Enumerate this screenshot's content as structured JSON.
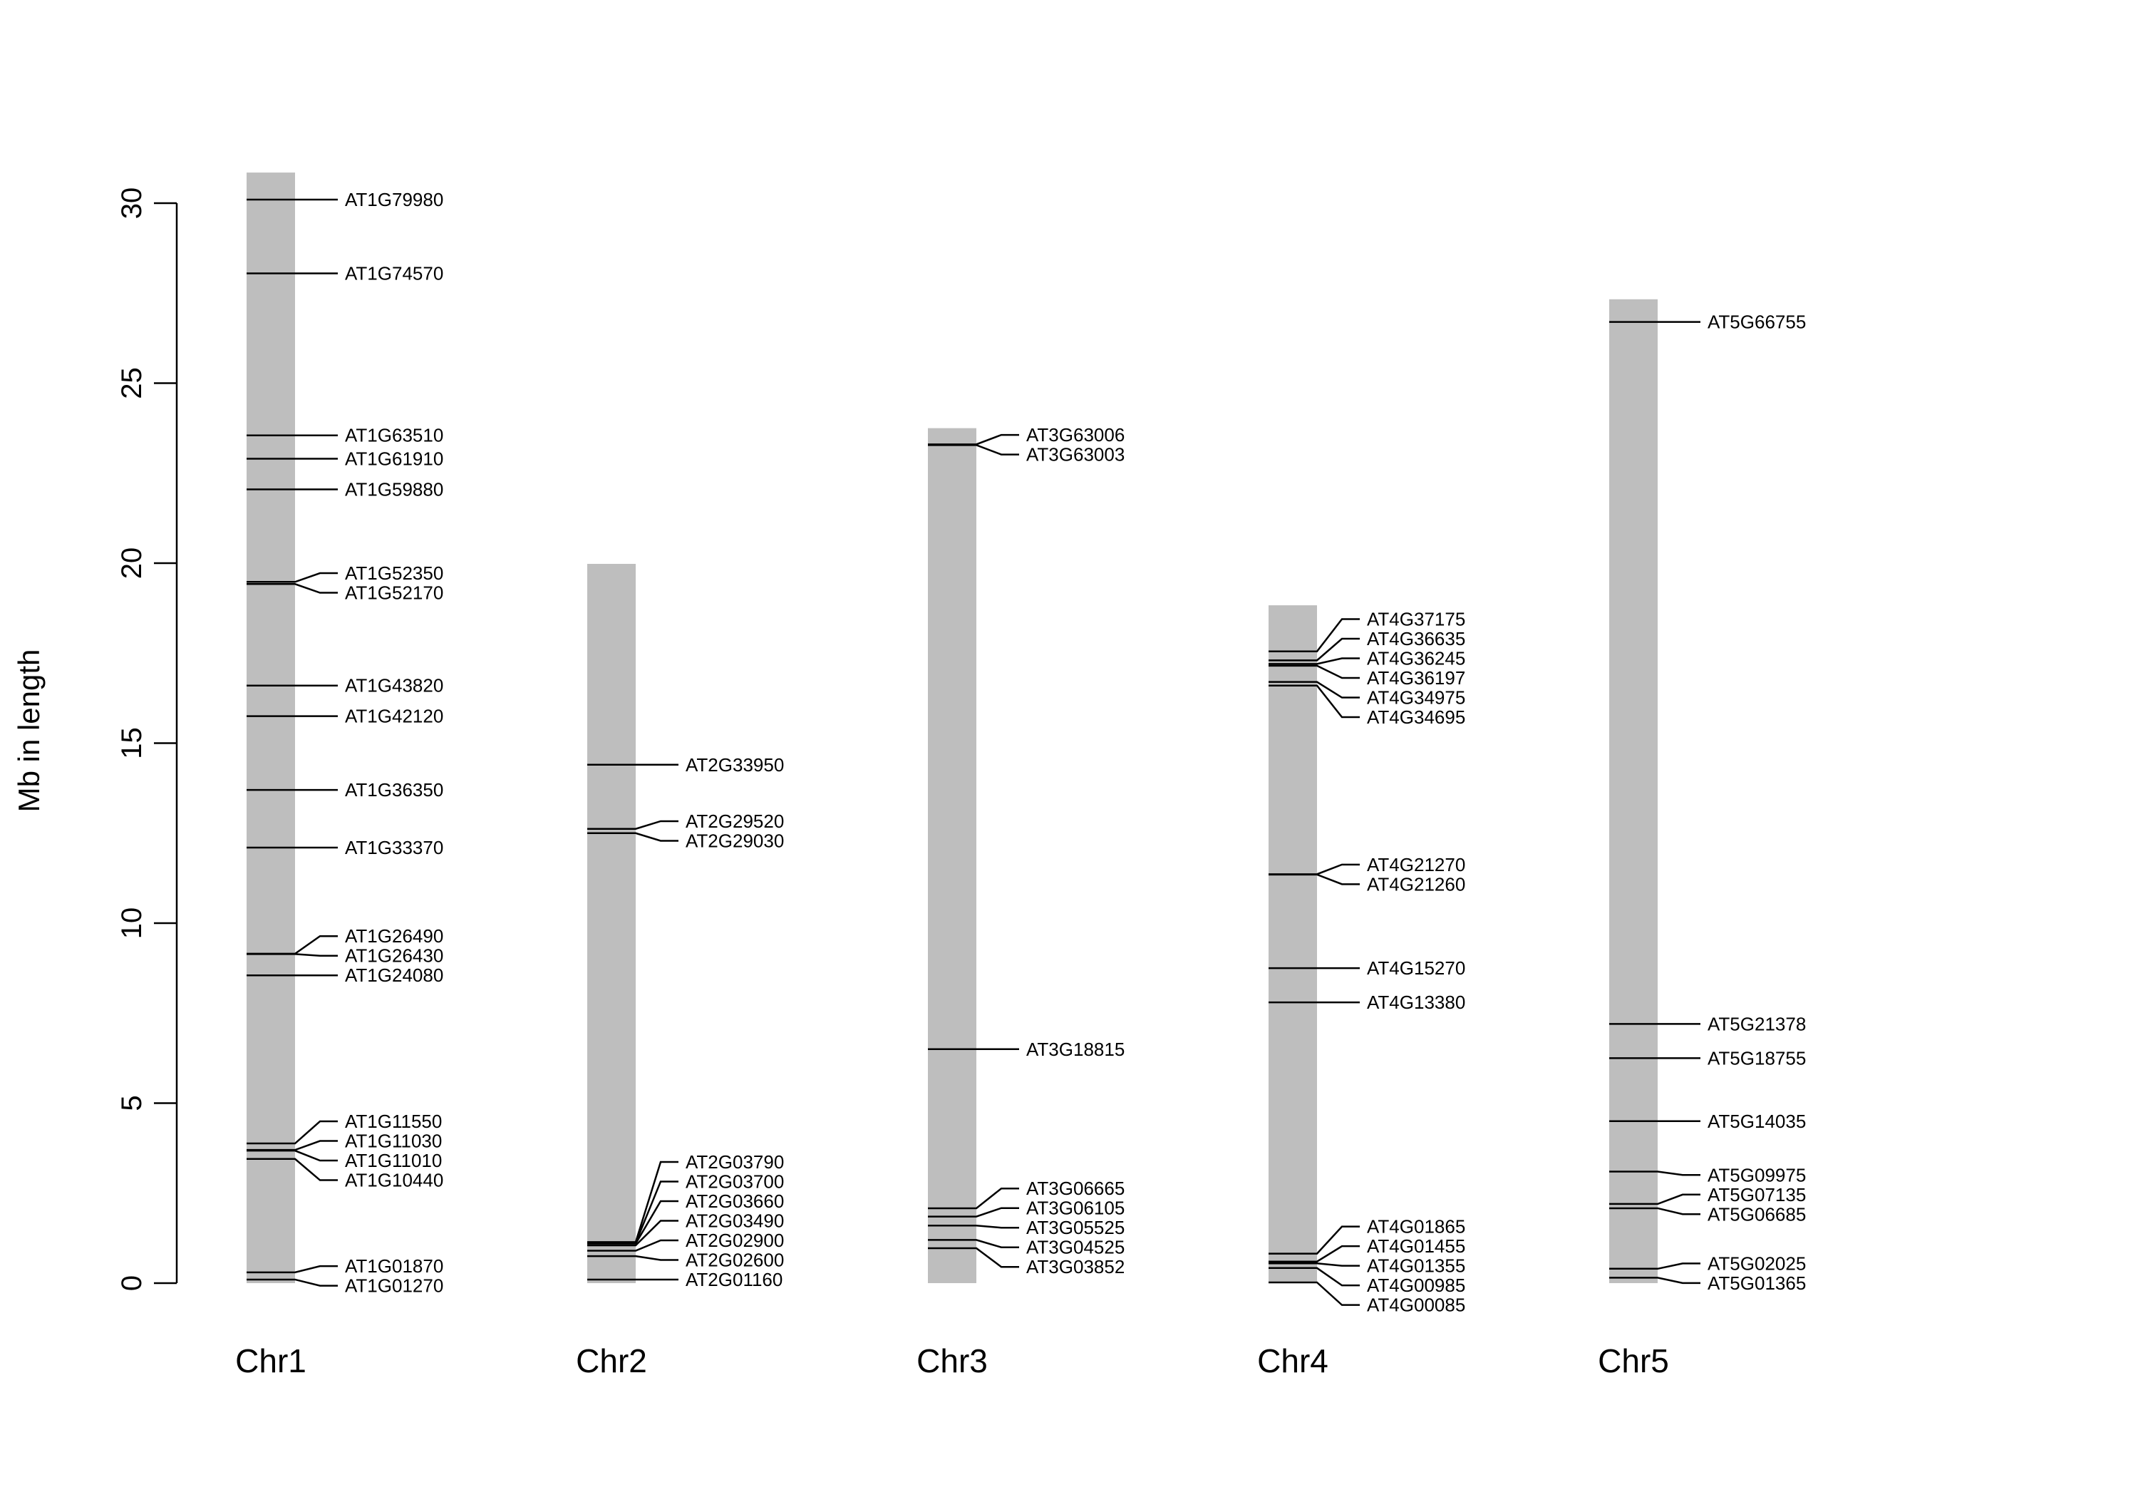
{
  "chart_data": {
    "type": "chromosome-ideogram",
    "title": "",
    "xlabel": "",
    "ylabel": "Mb in length",
    "ylim": [
      0,
      30
    ],
    "y_ticks": [
      0,
      5,
      10,
      15,
      20,
      25,
      30
    ],
    "grid": false,
    "bar_color": "#bebebe",
    "line_color": "#000000",
    "chromosomes": [
      {
        "name": "Chr1",
        "length": 30.85,
        "genes": [
          {
            "id": "AT1G01270",
            "pos": 0.1
          },
          {
            "id": "AT1G01870",
            "pos": 0.3
          },
          {
            "id": "AT1G10440",
            "pos": 3.45
          },
          {
            "id": "AT1G11010",
            "pos": 3.68
          },
          {
            "id": "AT1G11030",
            "pos": 3.7
          },
          {
            "id": "AT1G11550",
            "pos": 3.88
          },
          {
            "id": "AT1G24080",
            "pos": 8.55
          },
          {
            "id": "AT1G26430",
            "pos": 9.14
          },
          {
            "id": "AT1G26490",
            "pos": 9.15
          },
          {
            "id": "AT1G33370",
            "pos": 12.1
          },
          {
            "id": "AT1G36350",
            "pos": 13.7
          },
          {
            "id": "AT1G42120",
            "pos": 15.75
          },
          {
            "id": "AT1G43820",
            "pos": 16.6
          },
          {
            "id": "AT1G52170",
            "pos": 19.42
          },
          {
            "id": "AT1G52350",
            "pos": 19.48
          },
          {
            "id": "AT1G59880",
            "pos": 22.05
          },
          {
            "id": "AT1G61910",
            "pos": 22.9
          },
          {
            "id": "AT1G63510",
            "pos": 23.55
          },
          {
            "id": "AT1G74570",
            "pos": 28.05
          },
          {
            "id": "AT1G79980",
            "pos": 30.1
          }
        ]
      },
      {
        "name": "Chr2",
        "length": 19.98,
        "genes": [
          {
            "id": "AT2G01160",
            "pos": 0.1
          },
          {
            "id": "AT2G02600",
            "pos": 0.75
          },
          {
            "id": "AT2G02900",
            "pos": 0.9
          },
          {
            "id": "AT2G03490",
            "pos": 1.05
          },
          {
            "id": "AT2G03660",
            "pos": 1.1
          },
          {
            "id": "AT2G03700",
            "pos": 1.12
          },
          {
            "id": "AT2G03790",
            "pos": 1.14
          },
          {
            "id": "AT2G29030",
            "pos": 12.5
          },
          {
            "id": "AT2G29520",
            "pos": 12.62
          },
          {
            "id": "AT2G33950",
            "pos": 14.4
          }
        ]
      },
      {
        "name": "Chr3",
        "length": 23.75,
        "genes": [
          {
            "id": "AT3G03852",
            "pos": 0.97
          },
          {
            "id": "AT3G04525",
            "pos": 1.2
          },
          {
            "id": "AT3G05525",
            "pos": 1.6
          },
          {
            "id": "AT3G06105",
            "pos": 1.85
          },
          {
            "id": "AT3G06665",
            "pos": 2.08
          },
          {
            "id": "AT3G18815",
            "pos": 6.5
          },
          {
            "id": "AT3G63003",
            "pos": 23.28
          },
          {
            "id": "AT3G63006",
            "pos": 23.3
          }
        ]
      },
      {
        "name": "Chr4",
        "length": 18.83,
        "genes": [
          {
            "id": "AT4G00085",
            "pos": 0.02
          },
          {
            "id": "AT4G00985",
            "pos": 0.42
          },
          {
            "id": "AT4G01355",
            "pos": 0.55
          },
          {
            "id": "AT4G01455",
            "pos": 0.6
          },
          {
            "id": "AT4G01865",
            "pos": 0.82
          },
          {
            "id": "AT4G13380",
            "pos": 7.8
          },
          {
            "id": "AT4G15270",
            "pos": 8.75
          },
          {
            "id": "AT4G21260",
            "pos": 11.35
          },
          {
            "id": "AT4G21270",
            "pos": 11.36
          },
          {
            "id": "AT4G34695",
            "pos": 16.6
          },
          {
            "id": "AT4G34975",
            "pos": 16.7
          },
          {
            "id": "AT4G36197",
            "pos": 17.15
          },
          {
            "id": "AT4G36245",
            "pos": 17.2
          },
          {
            "id": "AT4G36635",
            "pos": 17.3
          },
          {
            "id": "AT4G37175",
            "pos": 17.55
          }
        ]
      },
      {
        "name": "Chr5",
        "length": 27.33,
        "genes": [
          {
            "id": "AT5G01365",
            "pos": 0.15
          },
          {
            "id": "AT5G02025",
            "pos": 0.4
          },
          {
            "id": "AT5G06685",
            "pos": 2.08
          },
          {
            "id": "AT5G07135",
            "pos": 2.2
          },
          {
            "id": "AT5G09975",
            "pos": 3.1
          },
          {
            "id": "AT5G14035",
            "pos": 4.5
          },
          {
            "id": "AT5G18755",
            "pos": 6.25
          },
          {
            "id": "AT5G21378",
            "pos": 7.2
          },
          {
            "id": "AT5G66755",
            "pos": 26.7
          }
        ]
      }
    ]
  }
}
